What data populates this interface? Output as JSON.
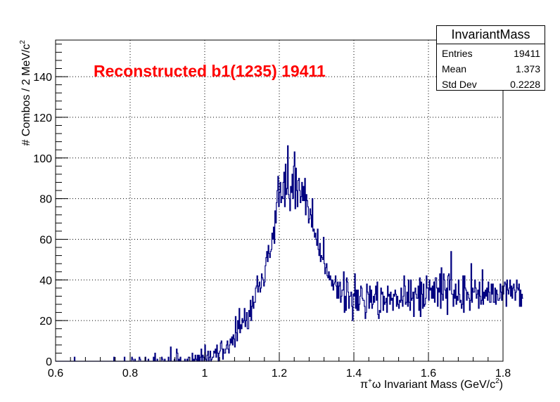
{
  "chart_data": {
    "type": "histogram",
    "title": "Reconstructed b1(1235) 19411",
    "xlabel_parts": [
      "π",
      "+",
      "ω Invariant Mass (GeV/c",
      "2",
      ")"
    ],
    "ylabel_parts": [
      "# Combos / 2 MeV/c",
      "2"
    ],
    "xlim": [
      0.6,
      1.8
    ],
    "ylim": [
      0,
      158
    ],
    "x_ticks": [
      0.6,
      0.8,
      1,
      1.2,
      1.4,
      1.6,
      1.8
    ],
    "y_ticks": [
      0,
      20,
      40,
      60,
      80,
      100,
      120,
      140
    ],
    "x_tick_labels": [
      "0.6",
      "0.8",
      "1",
      "1.2",
      "1.4",
      "1.6",
      "1.8"
    ],
    "y_tick_labels": [
      "0",
      "20",
      "40",
      "60",
      "80",
      "100",
      "120",
      "140"
    ],
    "grid": true,
    "bin_width": 0.002,
    "line_color": "#000080",
    "series": [
      {
        "name": "InvariantMass",
        "x_start": 0.6,
        "values": [
          0,
          0,
          0,
          0,
          0,
          0,
          0,
          0,
          0,
          0,
          0,
          0,
          0,
          0,
          0,
          0,
          0,
          0,
          0,
          0,
          0,
          0,
          0,
          0,
          0,
          2,
          0,
          0,
          0,
          0,
          0,
          0,
          0,
          0,
          0,
          0,
          0,
          0,
          0,
          0,
          0,
          0,
          0,
          0,
          0,
          0,
          0,
          0,
          0,
          0,
          0,
          0,
          0,
          0,
          0,
          0,
          0,
          0,
          0,
          0,
          0,
          0,
          0,
          0,
          0,
          0,
          0,
          0,
          0,
          0,
          0,
          0,
          0,
          0,
          0,
          0,
          0,
          0,
          2,
          0,
          0,
          0,
          0,
          0,
          0,
          0,
          0,
          0,
          0,
          0,
          0,
          0,
          2,
          0,
          0,
          0,
          0,
          0,
          0,
          0,
          0,
          0,
          2,
          1,
          0,
          0,
          1,
          0,
          0,
          0,
          0,
          0,
          2,
          1,
          0,
          0,
          0,
          0,
          0,
          0,
          2,
          0,
          0,
          0,
          1,
          0,
          0,
          0,
          0,
          0,
          0,
          2,
          0,
          4,
          0,
          0,
          1,
          0,
          0,
          0,
          0,
          0,
          2,
          1,
          0,
          0,
          1,
          0,
          0,
          0,
          0,
          2,
          0,
          0,
          7,
          0,
          0,
          0,
          0,
          1,
          0,
          0,
          6,
          4,
          0,
          1,
          0,
          2,
          0,
          0,
          0,
          0,
          0,
          1,
          0,
          0,
          1,
          0,
          2,
          2,
          0,
          0,
          0,
          4,
          0,
          1,
          0,
          3,
          1,
          0,
          3,
          0,
          3,
          0,
          2,
          6,
          0,
          3,
          2,
          0,
          8,
          1,
          0,
          3,
          5,
          0,
          2,
          5,
          0,
          1,
          2,
          2,
          5,
          4,
          6,
          2,
          8,
          4,
          0,
          4,
          5,
          9,
          10,
          6,
          1,
          6,
          4,
          4,
          6,
          8,
          10,
          6,
          4,
          8,
          11,
          9,
          12,
          8,
          13,
          11,
          7,
          22,
          14,
          10,
          20,
          16,
          26,
          14,
          18,
          16,
          21,
          19,
          20,
          26,
          17,
          20,
          24,
          16,
          16,
          25,
          22,
          30,
          20,
          27,
          32,
          26,
          29,
          29,
          36,
          37,
          42,
          34,
          37,
          39,
          34,
          36,
          43,
          41,
          40,
          37,
          39,
          47,
          51,
          54,
          49,
          57,
          53,
          51,
          54,
          55,
          63,
          60,
          66,
          58,
          74,
          68,
          78,
          84,
          91,
          76,
          83,
          88,
          78,
          81,
          80,
          88,
          93,
          76,
          97,
          82,
          85,
          106,
          82,
          80,
          74,
          86,
          83,
          92,
          80,
          96,
          103,
          75,
          95,
          84,
          76,
          89,
          90,
          84,
          78,
          81,
          88,
          79,
          86,
          79,
          90,
          72,
          82,
          79,
          76,
          68,
          70,
          75,
          72,
          66,
          80,
          64,
          65,
          61,
          63,
          60,
          57,
          65,
          55,
          52,
          58,
          49,
          52,
          51,
          50,
          61,
          48,
          43,
          46,
          48,
          42,
          41,
          44,
          40,
          42,
          40,
          37,
          40,
          35,
          38,
          39,
          42,
          37,
          31,
          39,
          31,
          37,
          39,
          29,
          32,
          35,
          35,
          44,
          24,
          32,
          25,
          41,
          39,
          34,
          26,
          32,
          32,
          34,
          27,
          20,
          33,
          32,
          43,
          26,
          35,
          25,
          35,
          25,
          28,
          32,
          37,
          36,
          31,
          30,
          30,
          27,
          21,
          24,
          38,
          34,
          33,
          26,
          37,
          29,
          35,
          26,
          28,
          32,
          29,
          33,
          37,
          30,
          39,
          23,
          21,
          25,
          24,
          36,
          33,
          34,
          25,
          32,
          28,
          29,
          31,
          24,
          37,
          32,
          33,
          28,
          34,
          30,
          31,
          25,
          33,
          32,
          35,
          33,
          27,
          32,
          28,
          26,
          30,
          29,
          36,
          30,
          27,
          32,
          42,
          37,
          28,
          29,
          34,
          27,
          40,
          29,
          25,
          40,
          30,
          31,
          34,
          22,
          34,
          36,
          33,
          31,
          31,
          37,
          25,
          41,
          22,
          39,
          33,
          26,
          38,
          27,
          28,
          31,
          42,
          36,
          36,
          30,
          40,
          35,
          36,
          31,
          37,
          31,
          39,
          29,
          41,
          41,
          36,
          27,
          36,
          34,
          43,
          26,
          46,
          33,
          30,
          43,
          40,
          35,
          31,
          36,
          23,
          42,
          43,
          35,
          40,
          54,
          33,
          33,
          27,
          35,
          31,
          38,
          28,
          32,
          30,
          40,
          33,
          29,
          30,
          26,
          28,
          42,
          24,
          42,
          36,
          35,
          30,
          34,
          33,
          31,
          25,
          30,
          48,
          29,
          36,
          34,
          34,
          40,
          36,
          31,
          33,
          35,
          26,
          39,
          32,
          28,
          30,
          45,
          28,
          34,
          31,
          35,
          32,
          36,
          30,
          39,
          34,
          29,
          29,
          38,
          33,
          38,
          29,
          29,
          36,
          28,
          35,
          33,
          30,
          30,
          31,
          38,
          34,
          30,
          37,
          33,
          37,
          39,
          38,
          27,
          40,
          35,
          33,
          36,
          40,
          32,
          37,
          31,
          36,
          38,
          35,
          30,
          34,
          40,
          36,
          35,
          38,
          27,
          35,
          27,
          33,
          31
        ]
      }
    ]
  },
  "stats_box": {
    "title": "InvariantMass",
    "rows": [
      {
        "label": "Entries",
        "value": "19411"
      },
      {
        "label": "Mean",
        "value": "1.373"
      },
      {
        "label": "Std Dev",
        "value": "0.2228"
      }
    ]
  }
}
